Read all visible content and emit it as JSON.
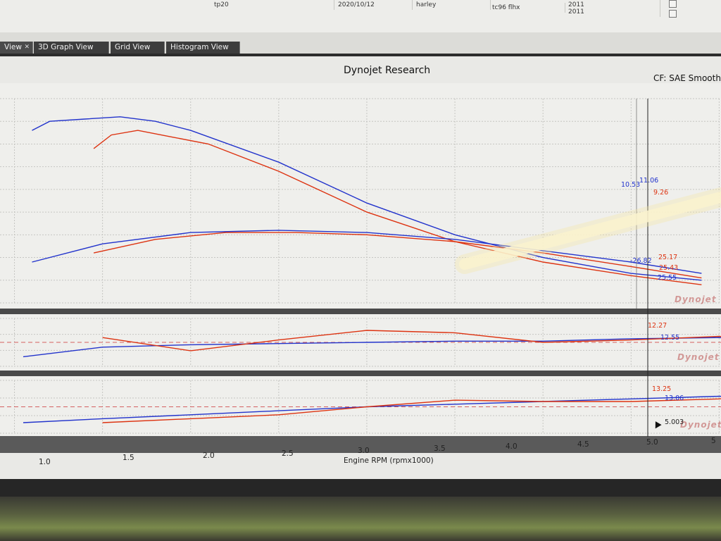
{
  "top_table": {
    "row1": [
      "tp20",
      "2020/10/12",
      "harley",
      "tc96 flhx",
      "2011"
    ],
    "row2_value": "2011"
  },
  "tabs": [
    {
      "label": "View",
      "active": true
    },
    {
      "label": "3D Graph View"
    },
    {
      "label": "Grid View"
    },
    {
      "label": "Histogram View"
    }
  ],
  "graph": {
    "title": "Dynojet Research",
    "correction": "CF: SAE Smooth",
    "xlabel": "Engine RPM (rpmx1000)",
    "logo_text": "Dynojet",
    "cursor_value": "5.003",
    "x_ticks": [
      "1.0",
      "1.5",
      "2.0",
      "2.5",
      "3.0",
      "3.5",
      "4.0",
      "4.5",
      "5.0",
      "5"
    ]
  },
  "chart_data": {
    "type": "line",
    "xlabel": "Engine RPM (rpmx1000)",
    "xlim": [
      0.95,
      5.45
    ],
    "panels": [
      {
        "name": "top",
        "series": [
          {
            "color": "#2233cc",
            "x": [
              1.1,
              1.2,
              1.4,
              1.6,
              1.8,
              2.0,
              2.5,
              3.0,
              3.5,
              4.0,
              4.5,
              4.9
            ],
            "y": [
              0.66,
              0.7,
              0.71,
              0.72,
              0.7,
              0.66,
              0.52,
              0.34,
              0.2,
              0.1,
              0.03,
              0.0
            ]
          },
          {
            "color": "#dd3311",
            "x": [
              1.45,
              1.55,
              1.7,
              1.9,
              2.1,
              2.5,
              3.0,
              3.5,
              4.0,
              4.5,
              4.9
            ],
            "y": [
              0.58,
              0.64,
              0.66,
              0.63,
              0.6,
              0.48,
              0.3,
              0.17,
              0.08,
              0.02,
              -0.02
            ]
          },
          {
            "color": "#2233cc",
            "x": [
              1.1,
              1.5,
              2.0,
              2.5,
              3.0,
              3.5,
              4.0,
              4.5,
              4.9
            ],
            "y": [
              0.08,
              0.16,
              0.21,
              0.22,
              0.21,
              0.18,
              0.13,
              0.08,
              0.03
            ]
          },
          {
            "color": "#dd3311",
            "x": [
              1.45,
              1.8,
              2.2,
              2.6,
              3.0,
              3.5,
              4.0,
              4.5,
              4.9
            ],
            "y": [
              0.12,
              0.18,
              0.21,
              0.21,
              0.2,
              0.17,
              0.12,
              0.06,
              0.01
            ]
          }
        ],
        "annotations": [
          {
            "text": "10.53",
            "color": "#2233cc"
          },
          {
            "text": "11.06",
            "color": "#2233cc"
          },
          {
            "text": "9.26",
            "color": "#dd3311"
          },
          {
            "text": "-26.82",
            "color": "#2233cc"
          },
          {
            "text": "25.17",
            "color": "#dd3311"
          },
          {
            "text": "25.43",
            "color": "#dd3311"
          },
          {
            "text": "25.55",
            "color": "#2233cc"
          }
        ]
      },
      {
        "name": "middle",
        "series": [
          {
            "color": "#2233cc",
            "x": [
              1.05,
              1.5,
              2.0,
              2.5,
              3.0,
              3.5,
              4.0,
              4.5,
              5.0,
              5.15
            ],
            "y": [
              -0.6,
              -0.2,
              -0.1,
              -0.05,
              0.0,
              0.05,
              0.05,
              0.15,
              0.2,
              0.1
            ]
          },
          {
            "color": "#dd3311",
            "x": [
              1.5,
              2.0,
              2.5,
              3.0,
              3.5,
              4.0,
              4.5,
              5.0,
              5.1
            ],
            "y": [
              0.2,
              -0.35,
              0.1,
              0.5,
              0.4,
              0.0,
              0.1,
              0.25,
              0.2
            ]
          }
        ],
        "annotations": [
          {
            "text": "12.27",
            "color": "#dd3311"
          },
          {
            "text": "12.55",
            "color": "#2233cc"
          }
        ]
      },
      {
        "name": "bottom",
        "series": [
          {
            "color": "#2233cc",
            "x": [
              1.05,
              1.5,
              2.0,
              2.5,
              3.0,
              3.5,
              4.0,
              4.5,
              5.0,
              5.15
            ],
            "y": [
              -0.6,
              -0.45,
              -0.3,
              -0.15,
              0.0,
              0.1,
              0.2,
              0.3,
              0.4,
              0.35
            ]
          },
          {
            "color": "#dd3311",
            "x": [
              1.5,
              2.0,
              2.5,
              3.0,
              3.5,
              4.0,
              4.5,
              5.0,
              5.1
            ],
            "y": [
              -0.6,
              -0.45,
              -0.3,
              0.0,
              0.25,
              0.2,
              0.2,
              0.3,
              0.4
            ]
          }
        ],
        "annotations": [
          {
            "text": "13.25",
            "color": "#dd3311"
          },
          {
            "text": "13.06",
            "color": "#2233cc"
          }
        ]
      }
    ]
  }
}
